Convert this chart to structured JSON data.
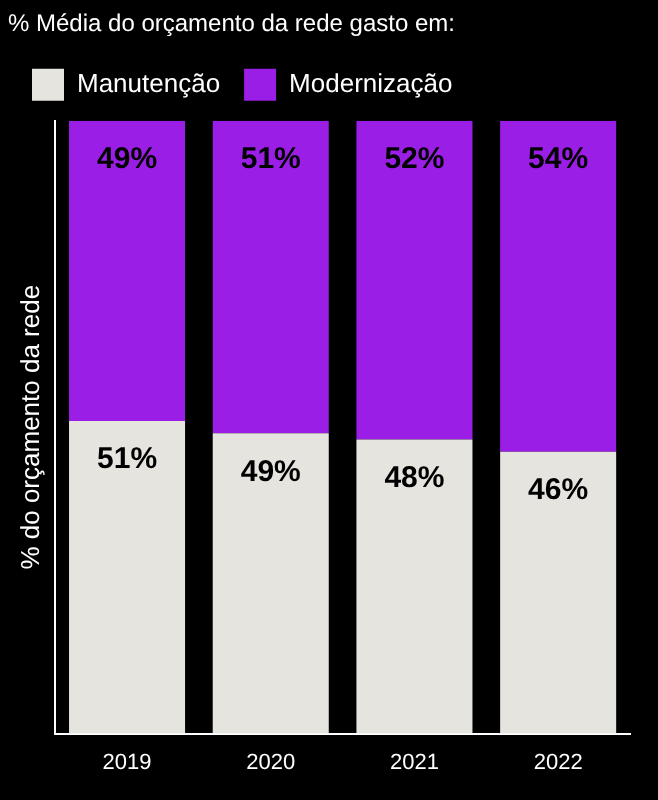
{
  "chart_data": {
    "type": "bar",
    "stacked": true,
    "legend_title": "% Média do orçamento da rede gasto em:",
    "ylabel": "% do orçamento da rede",
    "categories": [
      "2019",
      "2020",
      "2021",
      "2022"
    ],
    "tick_labels": "x",
    "legend": "top left",
    "grid": false,
    "series": [
      {
        "name": "Manutenção",
        "color": "#e6e4df",
        "values": [
          51,
          49,
          48,
          46
        ],
        "value_labels": [
          "51%",
          "49%",
          "48%",
          "46%"
        ]
      },
      {
        "name": "Modernização",
        "color": "#9b1ee6",
        "values": [
          49,
          51,
          52,
          54
        ],
        "value_labels": [
          "49%",
          "51%",
          "52%",
          "54%"
        ]
      }
    ]
  }
}
